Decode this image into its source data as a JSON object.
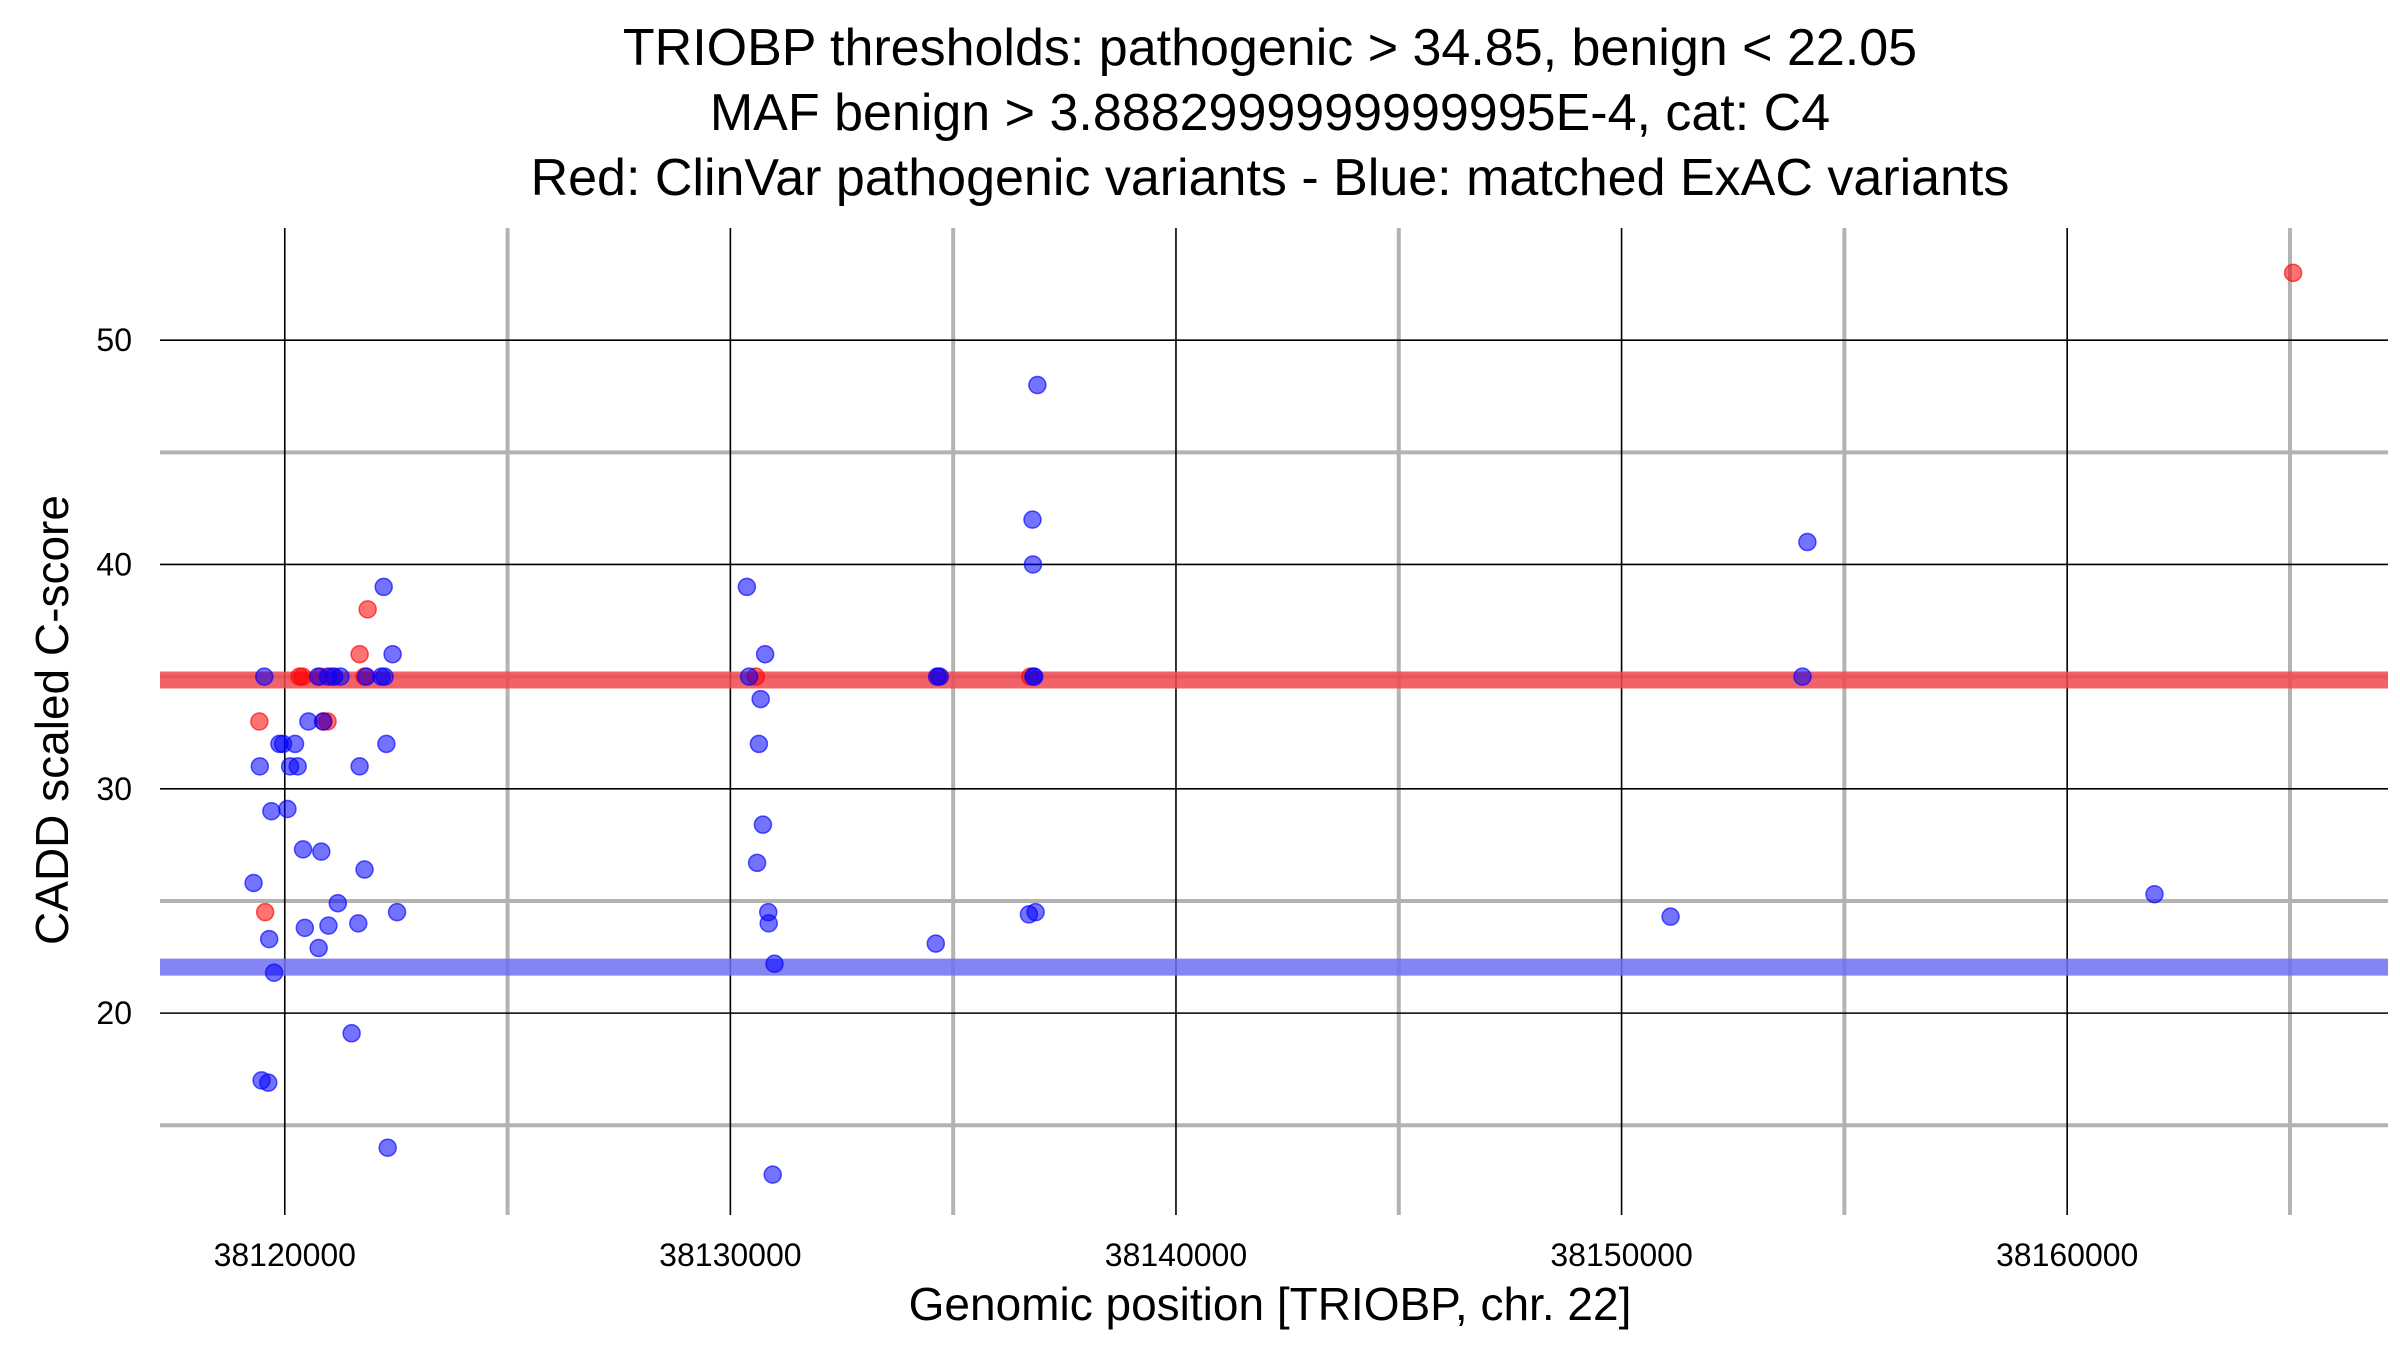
{
  "chart_data": {
    "type": "scatter",
    "title_lines": [
      "TRIOBP thresholds: pathogenic > 34.85, benign < 22.05",
      "MAF benign > 3.8882999999999995E-4, cat: C4",
      "Red: ClinVar pathogenic variants - Blue: matched ExAC variants"
    ],
    "xlabel": "Genomic position [TRIOBP, chr. 22]",
    "ylabel": "CADD scaled C-score",
    "xlim": [
      38117200,
      38167200
    ],
    "ylim": [
      11.0,
      55.0
    ],
    "x_major_ticks": [
      38120000,
      38130000,
      38140000,
      38150000,
      38160000
    ],
    "x_minor_ticks": [
      38125000,
      38135000,
      38145000,
      38155000,
      38165000
    ],
    "y_major_ticks": [
      20,
      30,
      40,
      50
    ],
    "y_minor_ticks": [
      15,
      25,
      35,
      45
    ],
    "thresholds": [
      {
        "name": "pathogenic",
        "value": 34.85,
        "color": "#f0484f"
      },
      {
        "name": "benign",
        "value": 22.05,
        "color": "#6f6ff0"
      }
    ],
    "series": [
      {
        "name": "ClinVar pathogenic variants",
        "color": "#ff0000",
        "points": [
          [
            38119430,
            33.0
          ],
          [
            38119560,
            24.5
          ],
          [
            38120330,
            35.0
          ],
          [
            38120400,
            35.0
          ],
          [
            38120800,
            35.0
          ],
          [
            38120870,
            33.0
          ],
          [
            38120960,
            33.0
          ],
          [
            38121060,
            35.0
          ],
          [
            38121680,
            36.0
          ],
          [
            38121860,
            38.0
          ],
          [
            38121790,
            35.0
          ],
          [
            38130570,
            35.0
          ],
          [
            38136730,
            35.0
          ],
          [
            38134670,
            35.0
          ],
          [
            38165070,
            53.0
          ]
        ]
      },
      {
        "name": "matched ExAC variants",
        "color": "#0000ff",
        "points": [
          [
            38119300,
            25.8
          ],
          [
            38119440,
            31.0
          ],
          [
            38119480,
            17.0
          ],
          [
            38119540,
            35.0
          ],
          [
            38119630,
            16.9
          ],
          [
            38119650,
            23.3
          ],
          [
            38119700,
            29.0
          ],
          [
            38119760,
            21.8
          ],
          [
            38119880,
            32.0
          ],
          [
            38119960,
            32.0
          ],
          [
            38120060,
            29.1
          ],
          [
            38120120,
            31.0
          ],
          [
            38120230,
            32.0
          ],
          [
            38120290,
            31.0
          ],
          [
            38120410,
            27.3
          ],
          [
            38120450,
            23.8
          ],
          [
            38120530,
            33.0
          ],
          [
            38120750,
            35.0
          ],
          [
            38120760,
            22.9
          ],
          [
            38120820,
            27.2
          ],
          [
            38120860,
            33.0
          ],
          [
            38120970,
            35.0
          ],
          [
            38120980,
            23.9
          ],
          [
            38121110,
            35.0
          ],
          [
            38121190,
            24.9
          ],
          [
            38121250,
            35.0
          ],
          [
            38121500,
            19.1
          ],
          [
            38121650,
            24.0
          ],
          [
            38121680,
            31.0
          ],
          [
            38121790,
            26.4
          ],
          [
            38121830,
            35.0
          ],
          [
            38122170,
            35.0
          ],
          [
            38122220,
            39.0
          ],
          [
            38122240,
            35.0
          ],
          [
            38122280,
            32.0
          ],
          [
            38122310,
            14.0
          ],
          [
            38122420,
            36.0
          ],
          [
            38122520,
            24.5
          ],
          [
            38130370,
            39.0
          ],
          [
            38130420,
            35.0
          ],
          [
            38130600,
            26.7
          ],
          [
            38130640,
            32.0
          ],
          [
            38130680,
            34.0
          ],
          [
            38130730,
            28.4
          ],
          [
            38130780,
            36.0
          ],
          [
            38130850,
            24.5
          ],
          [
            38130860,
            24.0
          ],
          [
            38130950,
            12.8
          ],
          [
            38130990,
            22.2
          ],
          [
            38134610,
            23.1
          ],
          [
            38134640,
            35.0
          ],
          [
            38134700,
            35.0
          ],
          [
            38136700,
            24.4
          ],
          [
            38136780,
            42.0
          ],
          [
            38136790,
            40.0
          ],
          [
            38136800,
            35.0
          ],
          [
            38136820,
            35.0
          ],
          [
            38136850,
            24.5
          ],
          [
            38136890,
            48.0
          ],
          [
            38151100,
            24.3
          ],
          [
            38154060,
            35.0
          ],
          [
            38154170,
            41.0
          ],
          [
            38161960,
            25.3
          ]
        ]
      }
    ]
  }
}
